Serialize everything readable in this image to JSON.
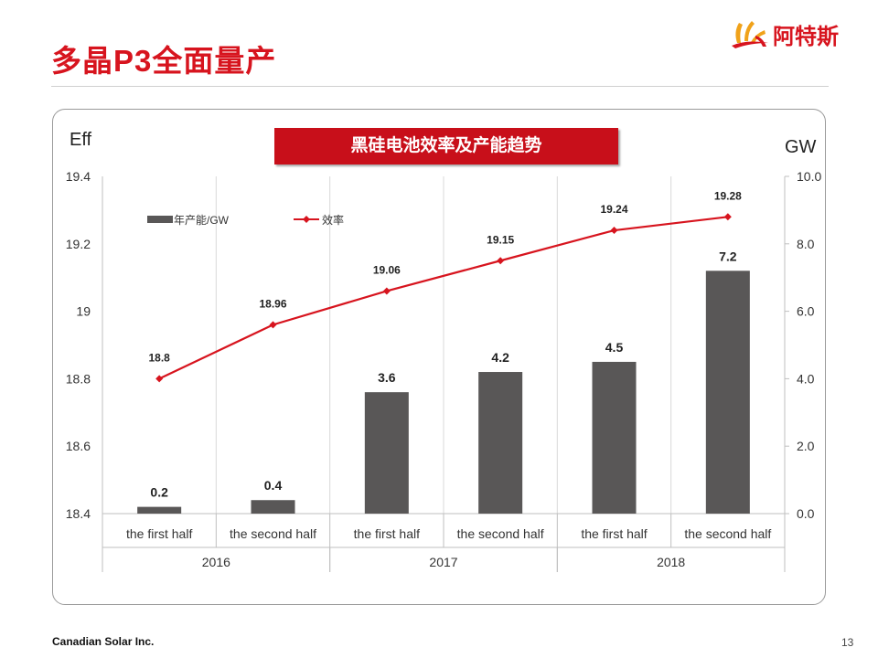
{
  "slide": {
    "title": "多晶P3全面量产",
    "logo_text": "阿特斯",
    "footer_company": "Canadian Solar Inc.",
    "page_number": "13"
  },
  "chart_data": {
    "type": "bar+line",
    "title": "黑硅电池效率及产能趋势",
    "y_left_label": "Eff",
    "y_right_label": "GW",
    "y_left_ticks": [
      "19.4",
      "19.2",
      "19",
      "18.8",
      "18.6",
      "18.4"
    ],
    "y_right_ticks": [
      "10.0",
      "8.0",
      "6.0",
      "4.0",
      "2.0",
      "0.0"
    ],
    "y_left_range": [
      18.4,
      19.4
    ],
    "y_right_range": [
      0,
      10
    ],
    "categories": [
      "the first half",
      "the second half",
      "the first half",
      "the second half",
      "the first half",
      "the second half"
    ],
    "groups": [
      {
        "label": "2016",
        "span": 2
      },
      {
        "label": "2017",
        "span": 2
      },
      {
        "label": "2018",
        "span": 2
      }
    ],
    "series": [
      {
        "name": "年产能/GW",
        "type": "bar",
        "axis": "right",
        "color": "#595757",
        "values": [
          0.2,
          0.4,
          3.6,
          4.2,
          4.5,
          7.2
        ],
        "labels": [
          "0.2",
          "0.4",
          "3.6",
          "4.2",
          "4.5",
          "7.2"
        ]
      },
      {
        "name": "效率",
        "type": "line",
        "axis": "left",
        "color": "#d7141e",
        "values": [
          18.8,
          18.96,
          19.06,
          19.15,
          19.24,
          19.28
        ],
        "labels": [
          "18.8",
          "18.96",
          "19.06",
          "19.15",
          "19.24",
          "19.28"
        ]
      }
    ],
    "legend_position": "top-left",
    "grid": "vertical"
  }
}
